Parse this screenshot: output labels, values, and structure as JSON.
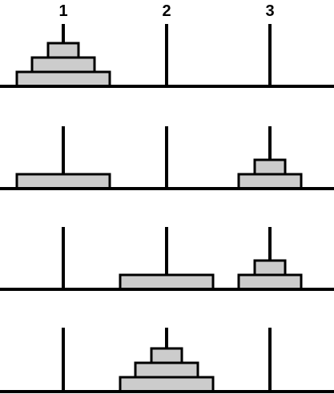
{
  "peg_labels": [
    "1",
    "2",
    "3"
  ],
  "colors": {
    "disk_fill": "#cccccc",
    "stroke": "#000000",
    "background": "#ffffff"
  },
  "states": [
    {
      "pegs": [
        [
          3,
          2,
          1
        ],
        [],
        []
      ]
    },
    {
      "pegs": [
        [
          3
        ],
        [],
        [
          2,
          1
        ]
      ]
    },
    {
      "pegs": [
        [],
        [
          3
        ],
        [
          2,
          1
        ]
      ]
    },
    {
      "pegs": [
        [],
        [
          3,
          2,
          1
        ],
        []
      ]
    }
  ]
}
